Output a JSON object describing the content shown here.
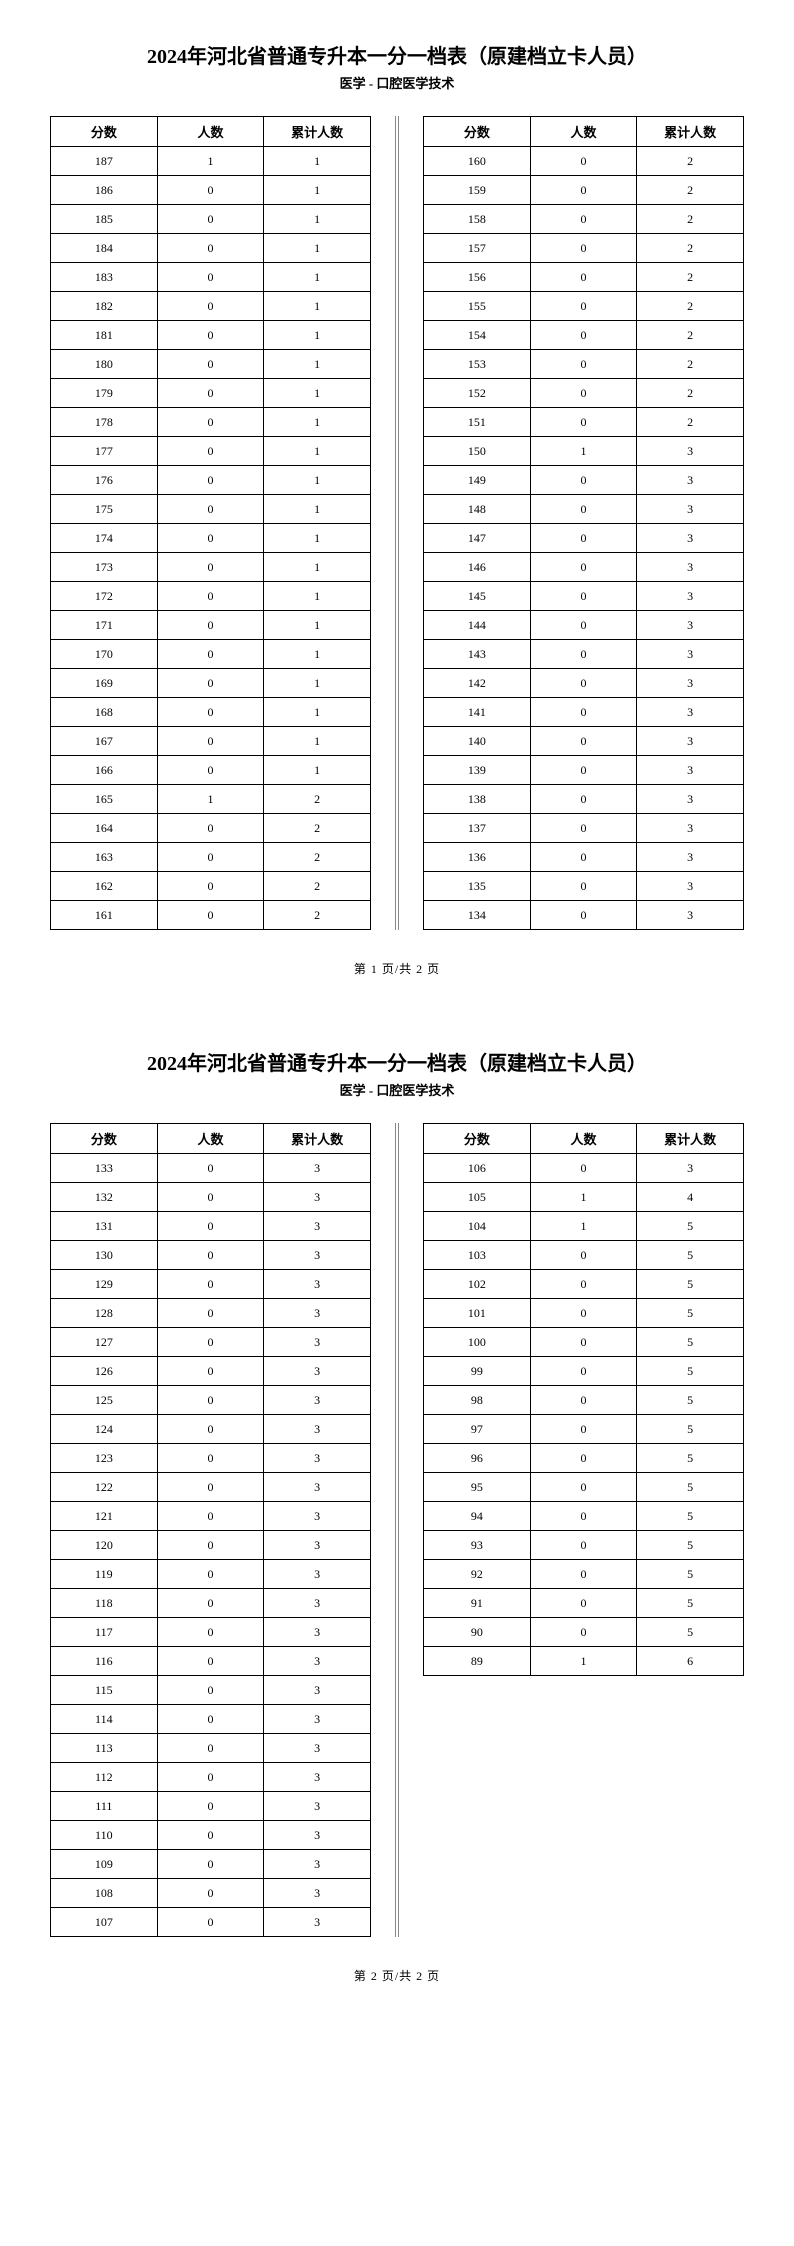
{
  "title": "2024年河北省普通专升本一分一档表（原建档立卡人员）",
  "subtitle": "医学 - 口腔医学技术",
  "headers": {
    "score": "分数",
    "count": "人数",
    "cum": "累计人数"
  },
  "footer": {
    "prefix": "第 ",
    "mid": " 页/共 ",
    "suffix": " 页",
    "total": "2"
  },
  "pages": [
    {
      "pageNum": "1",
      "left": [
        [
          "187",
          "1",
          "1"
        ],
        [
          "186",
          "0",
          "1"
        ],
        [
          "185",
          "0",
          "1"
        ],
        [
          "184",
          "0",
          "1"
        ],
        [
          "183",
          "0",
          "1"
        ],
        [
          "182",
          "0",
          "1"
        ],
        [
          "181",
          "0",
          "1"
        ],
        [
          "180",
          "0",
          "1"
        ],
        [
          "179",
          "0",
          "1"
        ],
        [
          "178",
          "0",
          "1"
        ],
        [
          "177",
          "0",
          "1"
        ],
        [
          "176",
          "0",
          "1"
        ],
        [
          "175",
          "0",
          "1"
        ],
        [
          "174",
          "0",
          "1"
        ],
        [
          "173",
          "0",
          "1"
        ],
        [
          "172",
          "0",
          "1"
        ],
        [
          "171",
          "0",
          "1"
        ],
        [
          "170",
          "0",
          "1"
        ],
        [
          "169",
          "0",
          "1"
        ],
        [
          "168",
          "0",
          "1"
        ],
        [
          "167",
          "0",
          "1"
        ],
        [
          "166",
          "0",
          "1"
        ],
        [
          "165",
          "1",
          "2"
        ],
        [
          "164",
          "0",
          "2"
        ],
        [
          "163",
          "0",
          "2"
        ],
        [
          "162",
          "0",
          "2"
        ],
        [
          "161",
          "0",
          "2"
        ]
      ],
      "right": [
        [
          "160",
          "0",
          "2"
        ],
        [
          "159",
          "0",
          "2"
        ],
        [
          "158",
          "0",
          "2"
        ],
        [
          "157",
          "0",
          "2"
        ],
        [
          "156",
          "0",
          "2"
        ],
        [
          "155",
          "0",
          "2"
        ],
        [
          "154",
          "0",
          "2"
        ],
        [
          "153",
          "0",
          "2"
        ],
        [
          "152",
          "0",
          "2"
        ],
        [
          "151",
          "0",
          "2"
        ],
        [
          "150",
          "1",
          "3"
        ],
        [
          "149",
          "0",
          "3"
        ],
        [
          "148",
          "0",
          "3"
        ],
        [
          "147",
          "0",
          "3"
        ],
        [
          "146",
          "0",
          "3"
        ],
        [
          "145",
          "0",
          "3"
        ],
        [
          "144",
          "0",
          "3"
        ],
        [
          "143",
          "0",
          "3"
        ],
        [
          "142",
          "0",
          "3"
        ],
        [
          "141",
          "0",
          "3"
        ],
        [
          "140",
          "0",
          "3"
        ],
        [
          "139",
          "0",
          "3"
        ],
        [
          "138",
          "0",
          "3"
        ],
        [
          "137",
          "0",
          "3"
        ],
        [
          "136",
          "0",
          "3"
        ],
        [
          "135",
          "0",
          "3"
        ],
        [
          "134",
          "0",
          "3"
        ]
      ]
    },
    {
      "pageNum": "2",
      "left": [
        [
          "133",
          "0",
          "3"
        ],
        [
          "132",
          "0",
          "3"
        ],
        [
          "131",
          "0",
          "3"
        ],
        [
          "130",
          "0",
          "3"
        ],
        [
          "129",
          "0",
          "3"
        ],
        [
          "128",
          "0",
          "3"
        ],
        [
          "127",
          "0",
          "3"
        ],
        [
          "126",
          "0",
          "3"
        ],
        [
          "125",
          "0",
          "3"
        ],
        [
          "124",
          "0",
          "3"
        ],
        [
          "123",
          "0",
          "3"
        ],
        [
          "122",
          "0",
          "3"
        ],
        [
          "121",
          "0",
          "3"
        ],
        [
          "120",
          "0",
          "3"
        ],
        [
          "119",
          "0",
          "3"
        ],
        [
          "118",
          "0",
          "3"
        ],
        [
          "117",
          "0",
          "3"
        ],
        [
          "116",
          "0",
          "3"
        ],
        [
          "115",
          "0",
          "3"
        ],
        [
          "114",
          "0",
          "3"
        ],
        [
          "113",
          "0",
          "3"
        ],
        [
          "112",
          "0",
          "3"
        ],
        [
          "111",
          "0",
          "3"
        ],
        [
          "110",
          "0",
          "3"
        ],
        [
          "109",
          "0",
          "3"
        ],
        [
          "108",
          "0",
          "3"
        ],
        [
          "107",
          "0",
          "3"
        ]
      ],
      "right": [
        [
          "106",
          "0",
          "3"
        ],
        [
          "105",
          "1",
          "4"
        ],
        [
          "104",
          "1",
          "5"
        ],
        [
          "103",
          "0",
          "5"
        ],
        [
          "102",
          "0",
          "5"
        ],
        [
          "101",
          "0",
          "5"
        ],
        [
          "100",
          "0",
          "5"
        ],
        [
          "99",
          "0",
          "5"
        ],
        [
          "98",
          "0",
          "5"
        ],
        [
          "97",
          "0",
          "5"
        ],
        [
          "96",
          "0",
          "5"
        ],
        [
          "95",
          "0",
          "5"
        ],
        [
          "94",
          "0",
          "5"
        ],
        [
          "93",
          "0",
          "5"
        ],
        [
          "92",
          "0",
          "5"
        ],
        [
          "91",
          "0",
          "5"
        ],
        [
          "90",
          "0",
          "5"
        ],
        [
          "89",
          "1",
          "6"
        ]
      ]
    }
  ]
}
